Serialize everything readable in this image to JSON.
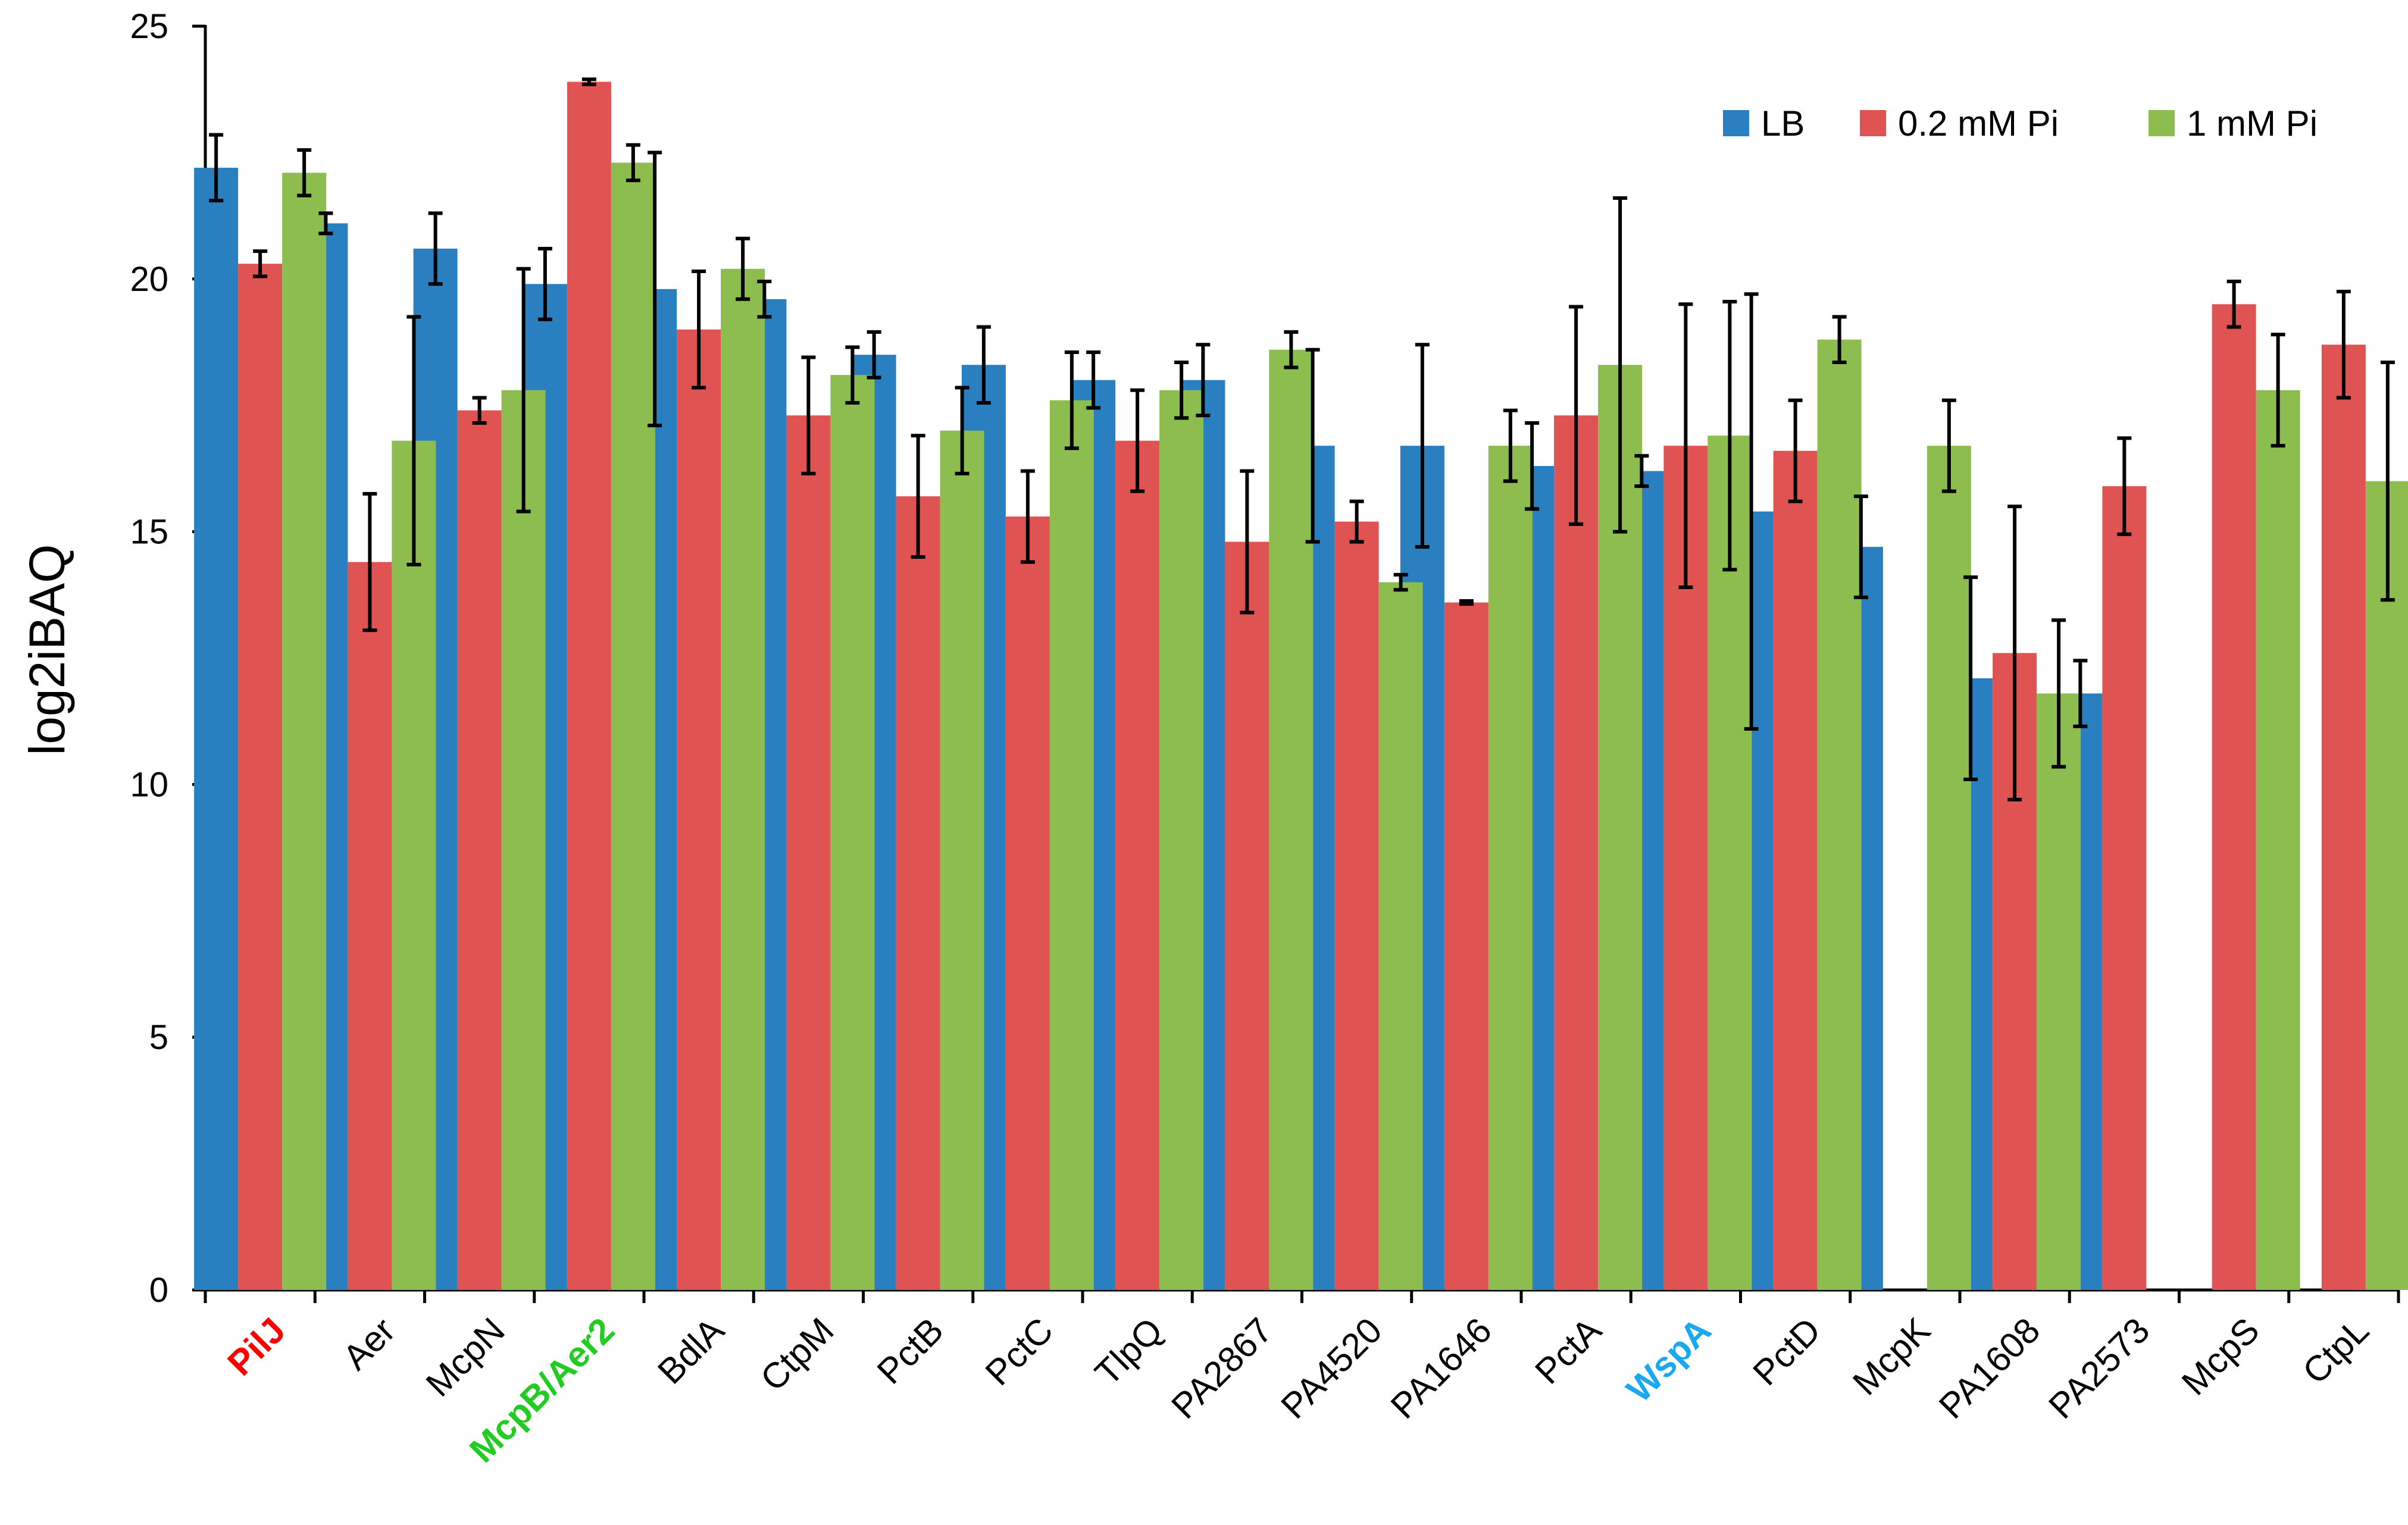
{
  "chart_data": {
    "type": "bar",
    "ylabel": "log2iBAQ",
    "xlabel": "",
    "ylim": [
      0,
      25
    ],
    "yticks": [
      0,
      5,
      10,
      15,
      20,
      25
    ],
    "legend_position": "top-right",
    "categories": [
      "PilJ",
      "Aer",
      "McpN",
      "McpB/Aer2",
      "BdlA",
      "CtpM",
      "PctB",
      "PctC",
      "TlpQ",
      "PA2867",
      "PA4520",
      "PA1646",
      "PctA",
      "WspA",
      "PctD",
      "McpK",
      "PA1608",
      "PA2573",
      "McpS",
      "CtpL"
    ],
    "category_colors": [
      "#ff0000",
      "#000000",
      "#000000",
      "#22cc22",
      "#000000",
      "#000000",
      "#000000",
      "#000000",
      "#000000",
      "#000000",
      "#000000",
      "#000000",
      "#000000",
      "#1aa9f0",
      "#000000",
      "#000000",
      "#000000",
      "#000000",
      "#000000",
      "#000000"
    ],
    "series": [
      {
        "name": "LB",
        "color": "#2a7fc1",
        "values": [
          22.2,
          21.1,
          20.6,
          19.9,
          19.8,
          19.6,
          18.5,
          18.3,
          18.0,
          18.0,
          16.7,
          16.7,
          16.3,
          16.2,
          15.4,
          14.7,
          12.1,
          11.8,
          null,
          null
        ],
        "errors": [
          0.65,
          0.2,
          0.7,
          0.7,
          2.7,
          0.35,
          0.45,
          0.75,
          0.55,
          0.7,
          1.9,
          2.0,
          0.85,
          0.3,
          4.3,
          1.0,
          2.0,
          0.65,
          null,
          null
        ]
      },
      {
        "name": "0.2 mM Pi",
        "color": "#e05353",
        "values": [
          20.3,
          14.4,
          17.4,
          23.9,
          19.0,
          17.3,
          15.7,
          15.3,
          16.8,
          14.8,
          15.2,
          13.6,
          17.3,
          16.7,
          16.6,
          null,
          12.6,
          15.9,
          19.5,
          18.7
        ],
        "errors": [
          0.25,
          1.35,
          0.25,
          0.05,
          1.15,
          1.15,
          1.2,
          0.9,
          1.0,
          1.4,
          0.4,
          0.03,
          2.15,
          2.8,
          1.0,
          null,
          2.9,
          0.95,
          0.45,
          1.05
        ]
      },
      {
        "name": "1 mM Pi",
        "color": "#8dbc4f",
        "values": [
          22.1,
          16.8,
          17.8,
          22.3,
          20.2,
          18.1,
          17.0,
          17.6,
          17.8,
          18.6,
          14.0,
          16.7,
          18.3,
          16.9,
          18.8,
          16.7,
          11.8,
          null,
          17.8,
          16.0
        ],
        "errors": [
          0.45,
          2.45,
          2.4,
          0.35,
          0.6,
          0.55,
          0.85,
          0.95,
          0.55,
          0.35,
          0.15,
          0.7,
          3.3,
          2.65,
          0.45,
          0.9,
          1.45,
          null,
          1.1,
          2.35
        ]
      }
    ]
  }
}
